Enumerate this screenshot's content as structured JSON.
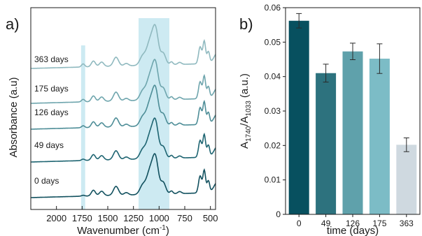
{
  "panels": {
    "a_label": "a)",
    "b_label": "b)"
  },
  "chart_data": [
    {
      "id": "a",
      "type": "line",
      "xlabel_main": "Wavenumber (cm",
      "xlabel_sup": "-1",
      "xlabel_end": ")",
      "ylabel": "Absorbance (a.u)",
      "xlim": [
        2250,
        450
      ],
      "x_reversed": true,
      "x_ticks": [
        2000,
        1750,
        1500,
        1250,
        1000,
        750,
        500
      ],
      "y_ticks": false,
      "highlight_bands": [
        {
          "from": 1760,
          "to": 1720,
          "color": "#cdeaf2"
        },
        {
          "from": 1200,
          "to": 900,
          "color": "#cdeaf2"
        }
      ],
      "series": [
        {
          "name": "0 days",
          "color": "#11505e"
        },
        {
          "name": "49 days",
          "color": "#1d6471"
        },
        {
          "name": "126 days",
          "color": "#4d8d97"
        },
        {
          "name": "175 days",
          "color": "#6ea5ad"
        },
        {
          "name": "363 days",
          "color": "#8fb9bf"
        }
      ]
    },
    {
      "id": "b",
      "type": "bar",
      "categories": [
        "0",
        "49",
        "126",
        "175",
        "363"
      ],
      "values": [
        0.0562,
        0.041,
        0.0473,
        0.0452,
        0.0202
      ],
      "errors": [
        0.0021,
        0.0026,
        0.0024,
        0.0043,
        0.002
      ],
      "colors": [
        "#07505f",
        "#2d727e",
        "#5fa1ab",
        "#7cbcc6",
        "#cfd9e0"
      ],
      "ylim": [
        0,
        0.06
      ],
      "y_ticks": [
        "0",
        "0.01",
        "0.02",
        "0.03",
        "0.04",
        "0.05",
        "0.06"
      ],
      "xlabel": "time (days)",
      "ylabel_A": "A",
      "ylabel_sub1": "1740",
      "ylabel_mid": "/A",
      "ylabel_sub2": "1033",
      "ylabel_unit": " (a.u.)"
    }
  ]
}
